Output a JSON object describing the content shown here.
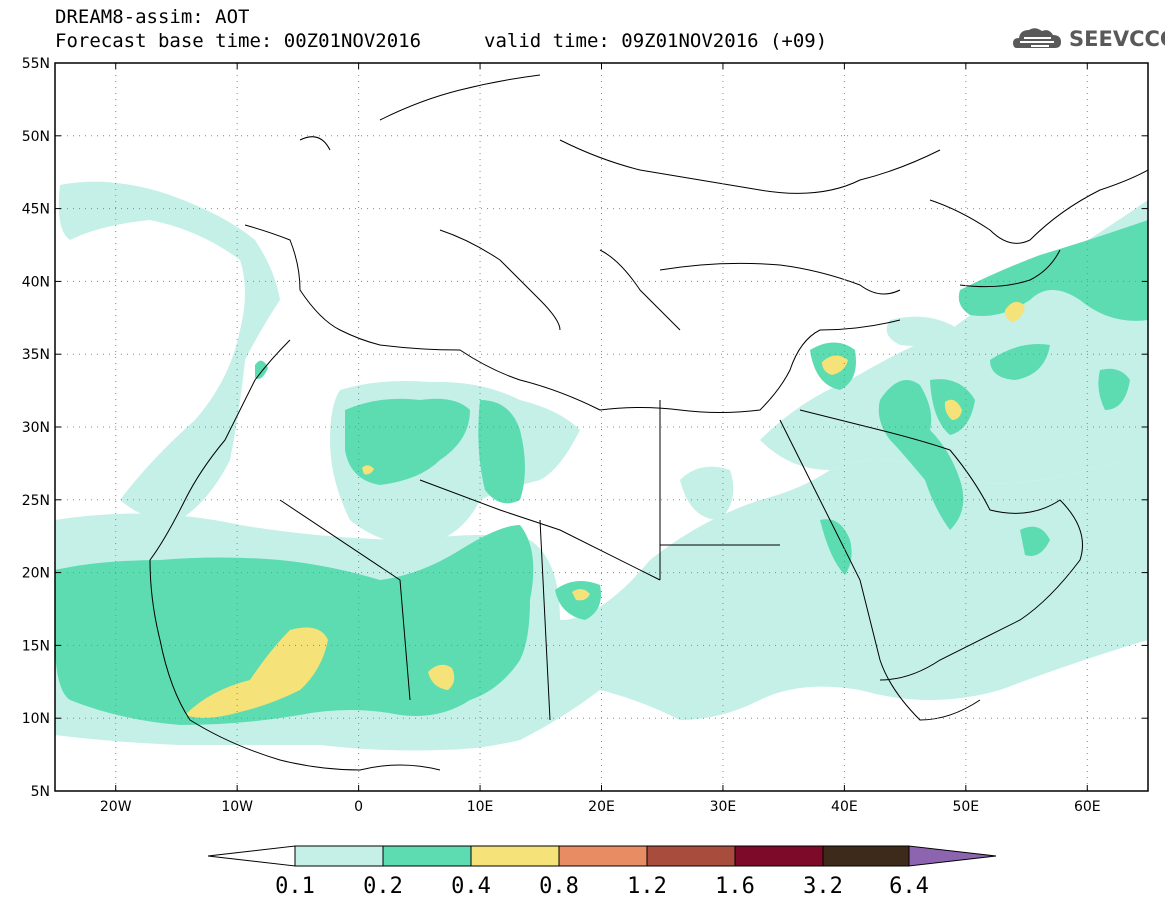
{
  "header": {
    "line1": "DREAM8-assim: AOT",
    "line2": "Forecast base time: 00Z01NOV2016",
    "valid": "valid time: 09Z01NOV2016 (+09)"
  },
  "logo": {
    "text": "SEEVCCC",
    "icon": "cloud-icon",
    "color": "#595959"
  },
  "map": {
    "lon_range": [
      -25,
      65
    ],
    "lat_range": [
      5,
      55
    ],
    "lat_labels": [
      "55N",
      "50N",
      "45N",
      "40N",
      "35N",
      "30N",
      "25N",
      "20N",
      "15N",
      "10N",
      "5N"
    ],
    "lat_values": [
      55,
      50,
      45,
      40,
      35,
      30,
      25,
      20,
      15,
      10,
      5
    ],
    "lon_labels": [
      "20W",
      "10W",
      "0",
      "10E",
      "20E",
      "30E",
      "40E",
      "50E",
      "60E"
    ],
    "lon_values": [
      -20,
      -10,
      0,
      10,
      20,
      30,
      40,
      50,
      60
    ]
  },
  "colorbar": {
    "labels": [
      "0.1",
      "0.2",
      "0.4",
      "0.8",
      "1.2",
      "1.6",
      "3.2",
      "6.4"
    ],
    "colors": {
      "under": "#ffffff",
      "b1": "#c4f0e8",
      "b2": "#5ddcb2",
      "b3": "#f5e278",
      "b4": "#e88c64",
      "b5": "#a84c3e",
      "b6": "#7e0a2a",
      "b7": "#3e2a1a",
      "over": "#8c64b0"
    }
  }
}
